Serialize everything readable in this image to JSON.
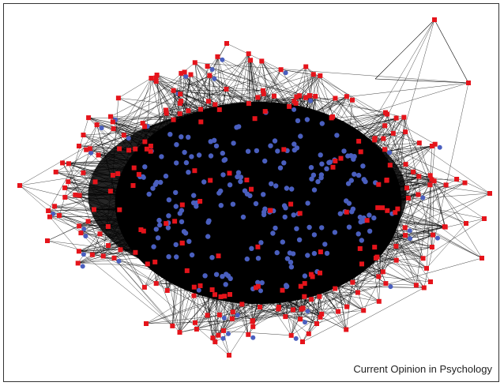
{
  "figure": {
    "source_label": "Current Opinion in Psychology"
  },
  "network": {
    "node_types": [
      {
        "shape": "square",
        "color": "#e5141b"
      },
      {
        "shape": "circle",
        "color": "#4a5fbf"
      }
    ],
    "edge_color": "#000000"
  }
}
